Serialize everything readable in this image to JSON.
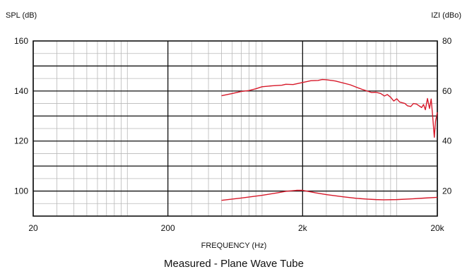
{
  "chart_data": {
    "type": "line",
    "title": "",
    "caption": "Measured - Plane Wave Tube",
    "xlabel": "FREQUENCY (Hz)",
    "x_scale": "log",
    "xlim": [
      20,
      20000
    ],
    "x_ticks": [
      {
        "value": 20,
        "label": "20"
      },
      {
        "value": 200,
        "label": "200"
      },
      {
        "value": 2000,
        "label": "2k"
      },
      {
        "value": 20000,
        "label": "20k"
      }
    ],
    "y_left": {
      "label": "SPL (dB)",
      "lim": [
        90,
        160
      ],
      "ticks": [
        {
          "value": 100,
          "label": "100"
        },
        {
          "value": 120,
          "label": "120"
        },
        {
          "value": 140,
          "label": "140"
        },
        {
          "value": 160,
          "label": "160"
        }
      ]
    },
    "y_right": {
      "label": "IZI (dBo)",
      "lim": [
        10,
        80
      ],
      "ticks": [
        {
          "value": 20,
          "label": "20"
        },
        {
          "value": 40,
          "label": "40"
        },
        {
          "value": 60,
          "label": "60"
        },
        {
          "value": 80,
          "label": "80"
        }
      ]
    },
    "grid": true,
    "series": [
      {
        "axis": "left",
        "color": "#d7192a",
        "points": [
          [
            500,
            138.1
          ],
          [
            600,
            139.0
          ],
          [
            700,
            139.8
          ],
          [
            800,
            140.2
          ],
          [
            900,
            140.9
          ],
          [
            1000,
            141.7
          ],
          [
            1200,
            142.1
          ],
          [
            1400,
            142.3
          ],
          [
            1500,
            142.7
          ],
          [
            1700,
            142.6
          ],
          [
            2000,
            143.4
          ],
          [
            2300,
            144.1
          ],
          [
            2600,
            144.2
          ],
          [
            2800,
            144.6
          ],
          [
            3000,
            144.5
          ],
          [
            3500,
            144.0
          ],
          [
            4500,
            142.5
          ],
          [
            5500,
            140.7
          ],
          [
            6500,
            139.4
          ],
          [
            7000,
            139.5
          ],
          [
            7600,
            139.0
          ],
          [
            8100,
            138.0
          ],
          [
            8500,
            138.6
          ],
          [
            9000,
            137.5
          ],
          [
            9500,
            136.0
          ],
          [
            10000,
            136.9
          ],
          [
            10500,
            135.6
          ],
          [
            11500,
            135.0
          ],
          [
            12000,
            134.1
          ],
          [
            12700,
            133.8
          ],
          [
            13300,
            135.0
          ],
          [
            14000,
            134.8
          ],
          [
            14700,
            134.0
          ],
          [
            15300,
            133.4
          ],
          [
            15800,
            134.6
          ],
          [
            16300,
            132.5
          ],
          [
            16900,
            137.0
          ],
          [
            17500,
            133.0
          ],
          [
            18000,
            136.8
          ],
          [
            18500,
            129.5
          ],
          [
            19000,
            121.5
          ],
          [
            19400,
            128.0
          ],
          [
            20000,
            131.5
          ]
        ]
      },
      {
        "axis": "right",
        "color": "#d7192a",
        "points": [
          [
            500,
            16.3
          ],
          [
            700,
            17.2
          ],
          [
            1000,
            18.3
          ],
          [
            1300,
            19.3
          ],
          [
            1500,
            19.9
          ],
          [
            1800,
            20.3
          ],
          [
            2000,
            20.3
          ],
          [
            2500,
            19.3
          ],
          [
            3000,
            18.6
          ],
          [
            4000,
            17.7
          ],
          [
            5000,
            17.1
          ],
          [
            6000,
            16.8
          ],
          [
            7000,
            16.6
          ],
          [
            8000,
            16.5
          ],
          [
            10000,
            16.6
          ],
          [
            13000,
            16.9
          ],
          [
            16000,
            17.2
          ],
          [
            20000,
            17.5
          ]
        ]
      }
    ]
  }
}
